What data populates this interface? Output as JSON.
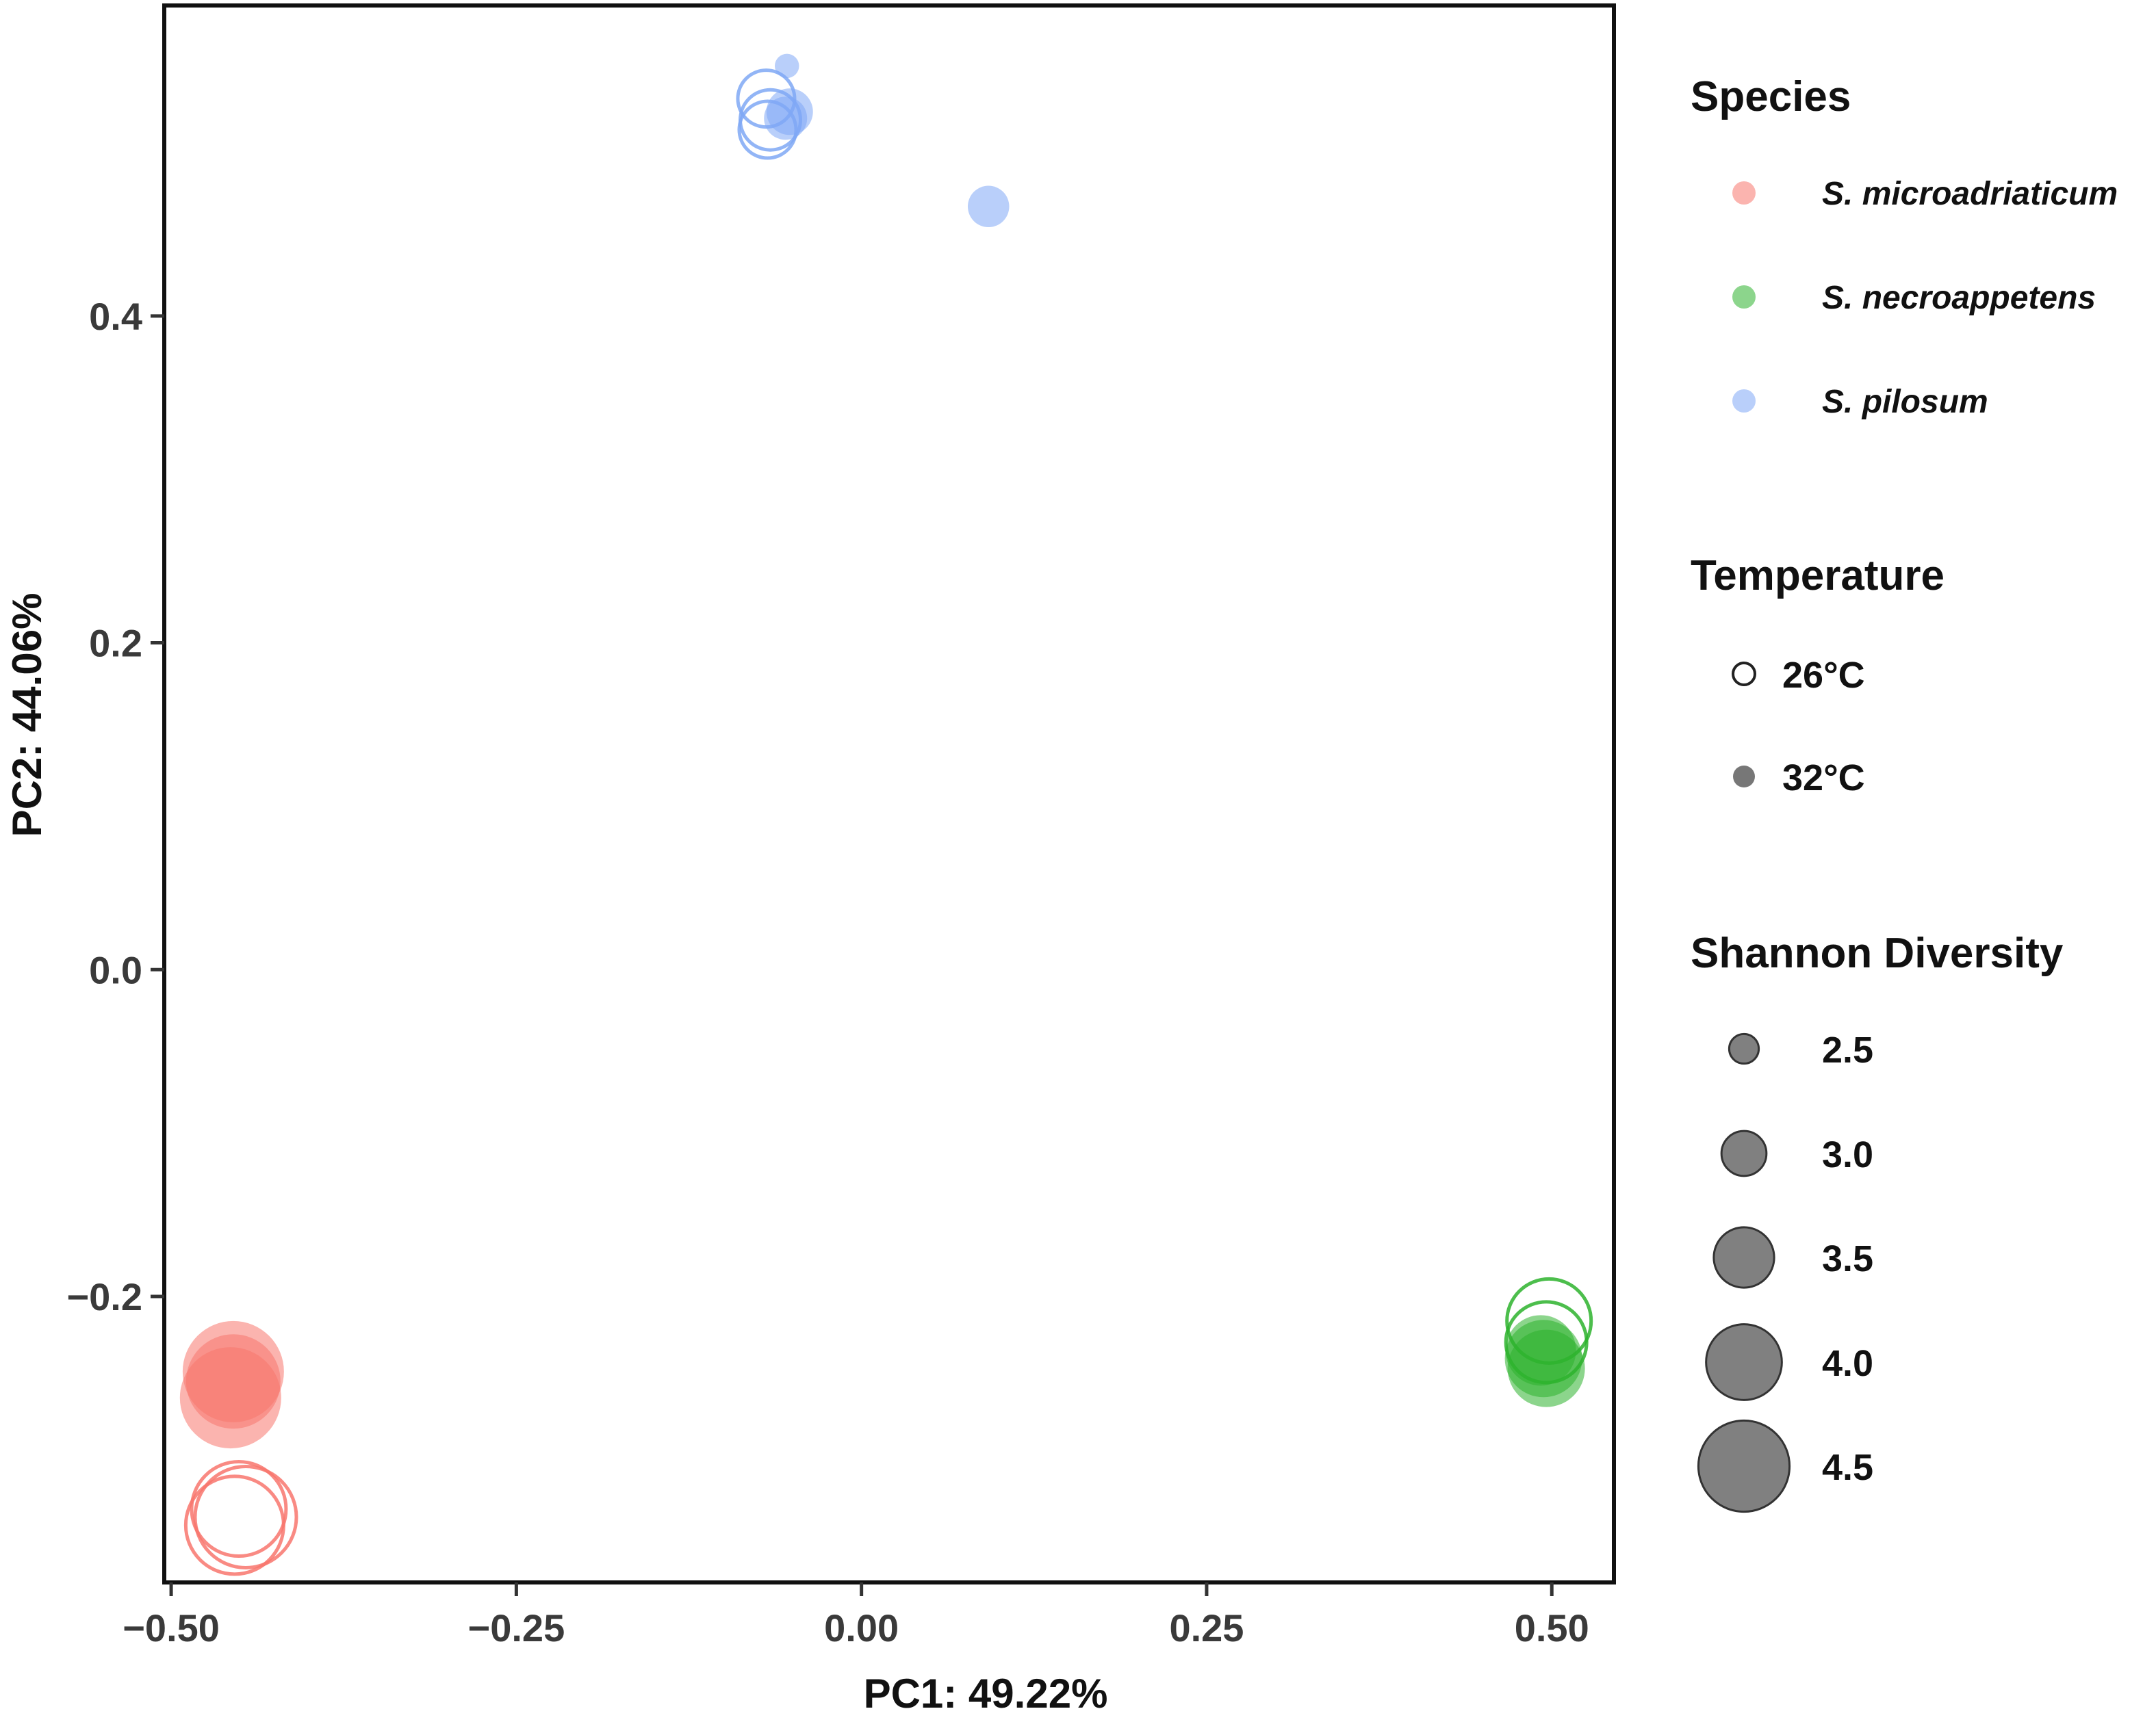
{
  "chart_data": {
    "type": "scatter",
    "title": "",
    "xlabel": "PC1: 49.22%",
    "ylabel": "PC2: 44.06%",
    "xlim": [
      -0.505,
      0.545
    ],
    "ylim": [
      -0.375,
      0.59
    ],
    "x_ticks": [
      {
        "value": -0.5,
        "label": "−0.50"
      },
      {
        "value": -0.25,
        "label": "−0.25"
      },
      {
        "value": 0.0,
        "label": "0.00"
      },
      {
        "value": 0.25,
        "label": "0.25"
      },
      {
        "value": 0.5,
        "label": "0.50"
      }
    ],
    "y_ticks": [
      {
        "value": -0.2,
        "label": "−0.2"
      },
      {
        "value": 0.0,
        "label": "0.0"
      },
      {
        "value": 0.2,
        "label": "0.2"
      },
      {
        "value": 0.4,
        "label": "0.4"
      }
    ],
    "grid": false,
    "legend_placement": "right",
    "species": [
      {
        "key": "micro",
        "label": "S. microadriaticum",
        "color": "#F8766D"
      },
      {
        "key": "necro",
        "label": "S. necroappetens",
        "color": "#2DB32D"
      },
      {
        "key": "pilo",
        "label": "S. pilosum",
        "color": "#7FA8F5"
      }
    ],
    "temperatures": [
      {
        "label": "26°C",
        "filled": false
      },
      {
        "label": "32°C",
        "filled": true
      }
    ],
    "shannon_sizes": [
      {
        "value": 2.5,
        "label": "2.5"
      },
      {
        "value": 3.0,
        "label": "3.0"
      },
      {
        "value": 3.5,
        "label": "3.5"
      },
      {
        "value": 4.0,
        "label": "4.0"
      },
      {
        "value": 4.5,
        "label": "4.5"
      }
    ],
    "legend_titles": {
      "species": "Species",
      "temperature": "Temperature",
      "shannon": "Shannon Diversity"
    },
    "points": [
      {
        "species": "micro",
        "temp": "32",
        "x": -0.455,
        "y": -0.246,
        "shannon": 4.5
      },
      {
        "species": "micro",
        "temp": "32",
        "x": -0.457,
        "y": -0.262,
        "shannon": 4.5
      },
      {
        "species": "micro",
        "temp": "32",
        "x": -0.455,
        "y": -0.252,
        "shannon": 4.3
      },
      {
        "species": "micro",
        "temp": "26",
        "x": -0.451,
        "y": -0.33,
        "shannon": 4.3
      },
      {
        "species": "micro",
        "temp": "26",
        "x": -0.446,
        "y": -0.335,
        "shannon": 4.5
      },
      {
        "species": "micro",
        "temp": "26",
        "x": -0.454,
        "y": -0.34,
        "shannon": 4.4
      },
      {
        "species": "necro",
        "temp": "26",
        "x": 0.498,
        "y": -0.215,
        "shannon": 4.0
      },
      {
        "species": "necro",
        "temp": "26",
        "x": 0.496,
        "y": -0.228,
        "shannon": 3.9
      },
      {
        "species": "necro",
        "temp": "32",
        "x": 0.494,
        "y": -0.238,
        "shannon": 3.8
      },
      {
        "species": "necro",
        "temp": "32",
        "x": 0.496,
        "y": -0.244,
        "shannon": 3.8
      },
      {
        "species": "necro",
        "temp": "32",
        "x": 0.492,
        "y": -0.233,
        "shannon": 3.6
      },
      {
        "species": "pilo",
        "temp": "26",
        "x": -0.069,
        "y": 0.533,
        "shannon": 3.2
      },
      {
        "species": "pilo",
        "temp": "26",
        "x": -0.066,
        "y": 0.52,
        "shannon": 3.3
      },
      {
        "species": "pilo",
        "temp": "26",
        "x": -0.068,
        "y": 0.514,
        "shannon": 3.2
      },
      {
        "species": "pilo",
        "temp": "32",
        "x": -0.052,
        "y": 0.525,
        "shannon": 2.9
      },
      {
        "species": "pilo",
        "temp": "32",
        "x": -0.055,
        "y": 0.521,
        "shannon": 2.8
      },
      {
        "species": "pilo",
        "temp": "32",
        "x": -0.054,
        "y": 0.553,
        "shannon": 2.25
      },
      {
        "species": "pilo",
        "temp": "32",
        "x": 0.092,
        "y": 0.467,
        "shannon": 2.75
      }
    ]
  }
}
